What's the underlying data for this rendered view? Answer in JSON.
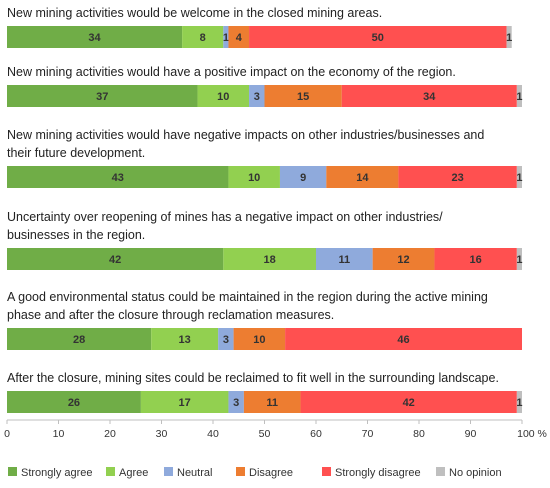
{
  "chart_data": {
    "type": "bar",
    "orientation": "horizontal",
    "stacked": true,
    "categories": [
      [
        "New mining activities would be welcome in the closed mining areas."
      ],
      [
        "New mining activities would have a positive impact on the economy of the region."
      ],
      [
        "New mining activities would have negative impacts on other industries/businesses and",
        "their future development."
      ],
      [
        "Uncertainty over reopening of mines has a negative impact on other industries/",
        "businesses in the region."
      ],
      [
        "A good environmental status could be maintained in the region during the active mining",
        "phase and after the closure through reclamation measures."
      ],
      [
        "After the closure, mining sites could be reclaimed to fit well in the surrounding landscape."
      ]
    ],
    "series": [
      {
        "name": "Strongly agree",
        "color": "#70ad47",
        "values": [
          34,
          37,
          43,
          42,
          28,
          26
        ]
      },
      {
        "name": "Agree",
        "color": "#92d050",
        "values": [
          8,
          10,
          10,
          18,
          13,
          17
        ]
      },
      {
        "name": "Neutral",
        "color": "#8faadc",
        "values": [
          1,
          3,
          9,
          11,
          3,
          3
        ]
      },
      {
        "name": "Disagree",
        "color": "#ed7d31",
        "values": [
          4,
          15,
          14,
          12,
          10,
          11
        ]
      },
      {
        "name": "Strongly disagree",
        "color": "#ff5050",
        "values": [
          50,
          34,
          23,
          16,
          46,
          42
        ]
      },
      {
        "name": "No opinion",
        "color": "#bfbfbf",
        "values": [
          1,
          1,
          1,
          1,
          0,
          1
        ]
      }
    ],
    "xlim": [
      0,
      100
    ],
    "xticks": [
      "0",
      "10",
      "20",
      "30",
      "40",
      "50",
      "60",
      "70",
      "80",
      "90",
      "100 %"
    ],
    "grid": false,
    "legend_position": "bottom"
  }
}
